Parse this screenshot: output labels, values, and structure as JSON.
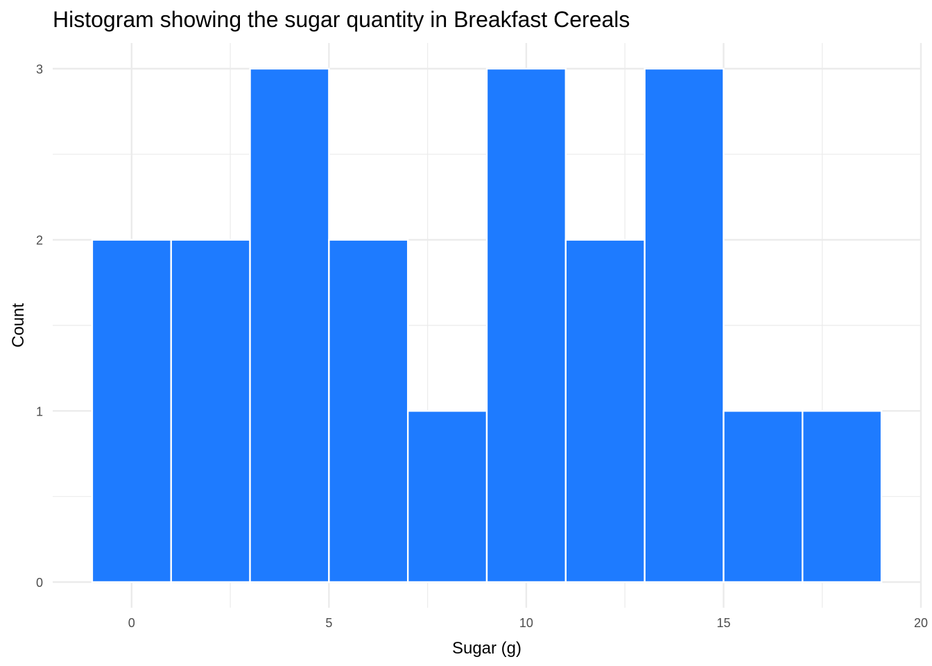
{
  "chart_data": {
    "type": "bar",
    "title": "Histogram showing the sugar quantity in Breakfast Cereals",
    "xlabel": "Sugar (g)",
    "ylabel": "Count",
    "bin_width": 2,
    "bins": [
      {
        "start": -1,
        "end": 1,
        "count": 2
      },
      {
        "start": 1,
        "end": 3,
        "count": 2
      },
      {
        "start": 3,
        "end": 5,
        "count": 3
      },
      {
        "start": 5,
        "end": 7,
        "count": 2
      },
      {
        "start": 7,
        "end": 9,
        "count": 1
      },
      {
        "start": 9,
        "end": 11,
        "count": 3
      },
      {
        "start": 11,
        "end": 13,
        "count": 2
      },
      {
        "start": 13,
        "end": 15,
        "count": 3
      },
      {
        "start": 15,
        "end": 17,
        "count": 1
      },
      {
        "start": 17,
        "end": 19,
        "count": 1
      }
    ],
    "xlim": [
      -2,
      20
    ],
    "ylim": [
      -0.15,
      3.15
    ],
    "x_ticks": [
      0,
      5,
      10,
      15,
      20
    ],
    "y_ticks": [
      0,
      1,
      2,
      3
    ],
    "grid": true,
    "bar_color": "#1E7BFF",
    "bar_border_color": "#FFFFFF",
    "grid_color": "#EBEBEB"
  }
}
